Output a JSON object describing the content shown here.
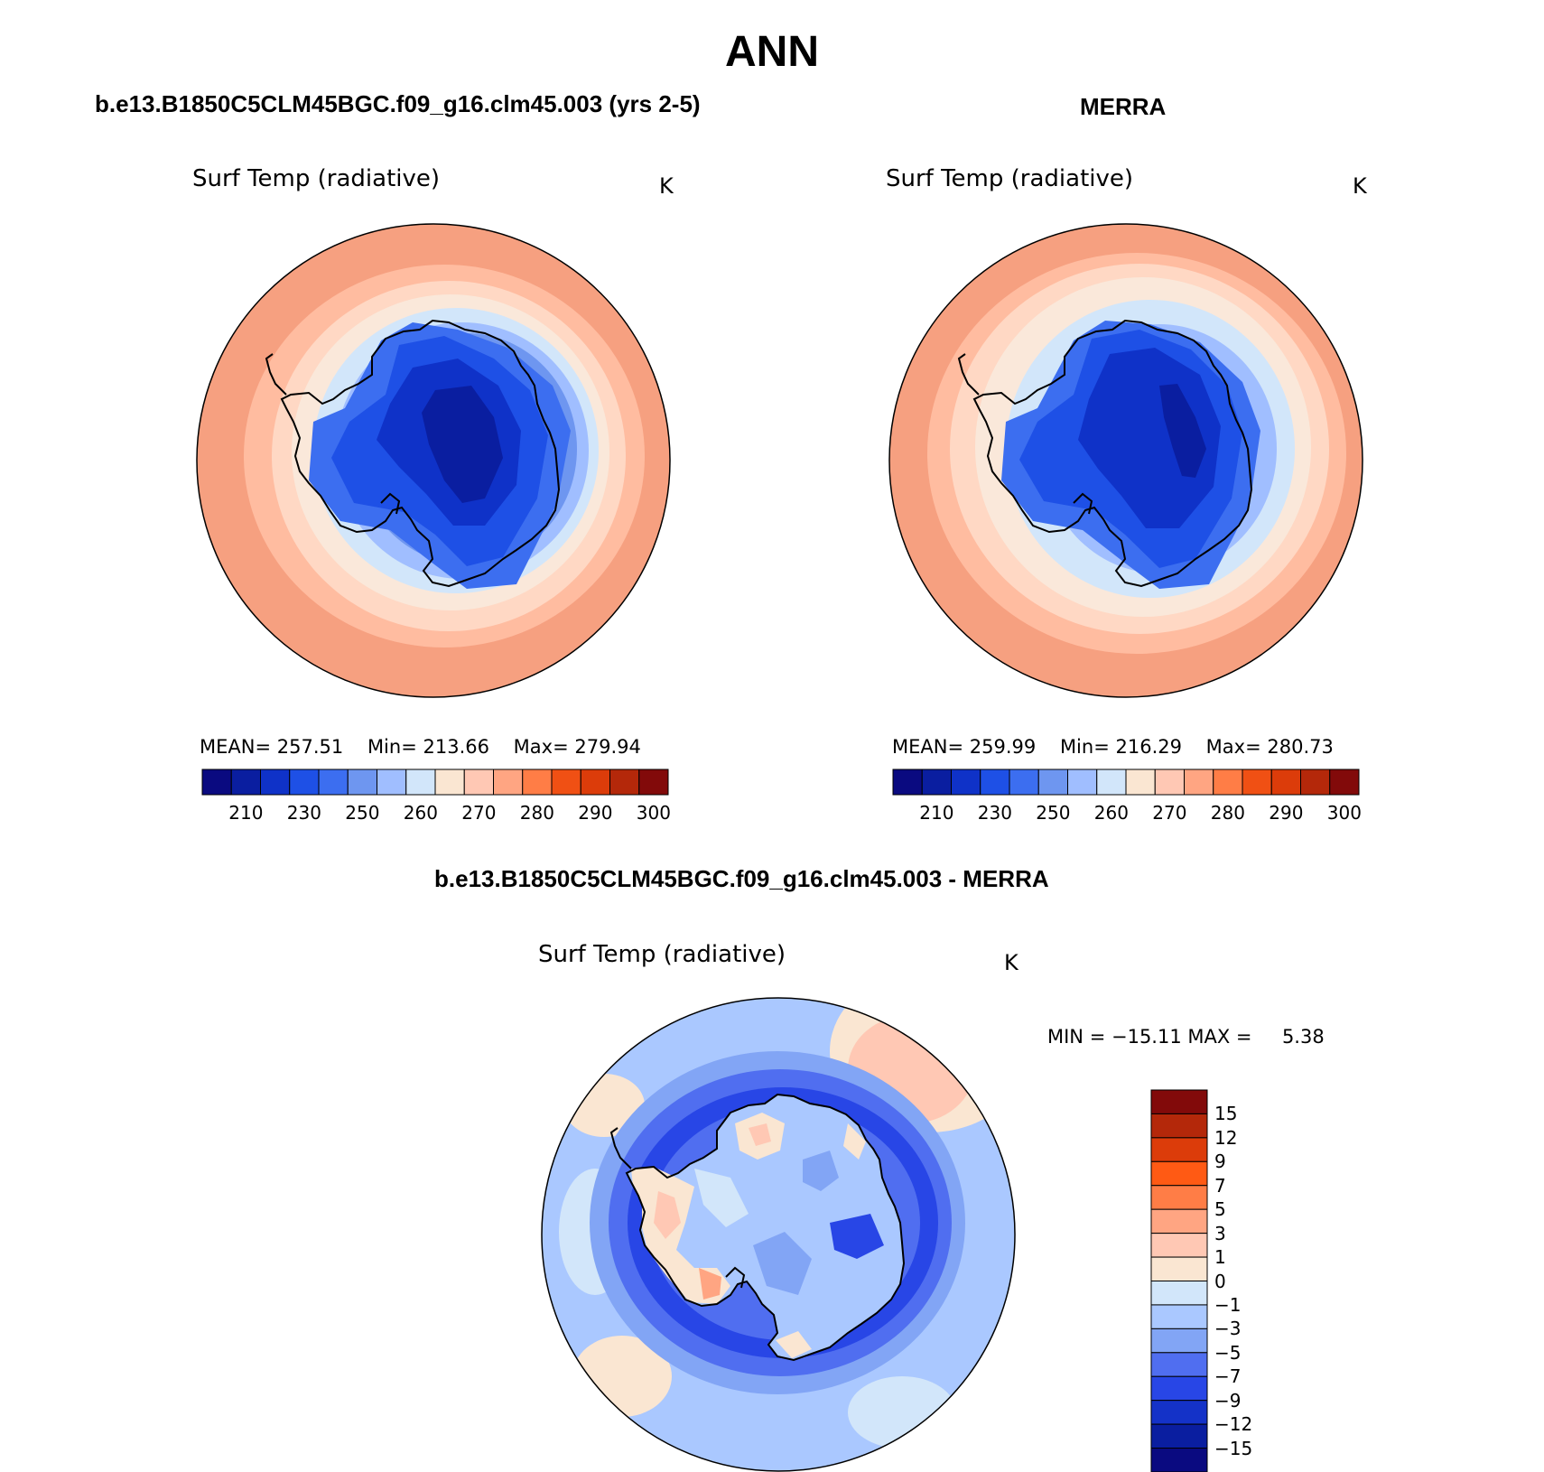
{
  "header": {
    "title": "ANN"
  },
  "panels": {
    "model": {
      "title": "b.e13.B1850C5CLM45BGC.f09_g16.clm45.003 (yrs 2-5)",
      "variable": "Surf Temp (radiative)",
      "units": "K",
      "mean_label": "MEAN=",
      "mean": "257.51",
      "min_label": "Min=",
      "min": "213.66",
      "max_label": "Max=",
      "max": "279.94"
    },
    "obs": {
      "title": "MERRA",
      "variable": "Surf Temp (radiative)",
      "units": "K",
      "mean_label": "MEAN=",
      "mean": "259.99",
      "min_label": "Min=",
      "min": "216.29",
      "max_label": "Max=",
      "max": "280.73"
    },
    "diff": {
      "title": "b.e13.B1850C5CLM45BGC.f09_g16.clm45.003 - MERRA",
      "variable": "Surf Temp (radiative)",
      "units": "K",
      "min_label": "MIN =",
      "min": "−15.11",
      "max_label": "MAX =",
      "max": "5.38"
    }
  },
  "abs_colorbar": {
    "colors": [
      "#0a0a80",
      "#0a1ea0",
      "#0f32c8",
      "#1e50e6",
      "#3c6ef0",
      "#6e96f0",
      "#a0beff",
      "#d2e6fa",
      "#fae6d2",
      "#ffc8b4",
      "#ffa582",
      "#ff7d46",
      "#f05014",
      "#dc3c0a",
      "#b4280a",
      "#820a0a"
    ],
    "labels": [
      "210",
      "230",
      "250",
      "260",
      "270",
      "280",
      "290",
      "300"
    ]
  },
  "diff_colorbar": {
    "colors": [
      "#820a0a",
      "#b4280a",
      "#dc3c0a",
      "#ff5a14",
      "#ff7d46",
      "#ffa582",
      "#ffc8b4",
      "#fae6d2",
      "#d2e6fa",
      "#aac8ff",
      "#82a5f5",
      "#506ef0",
      "#2846e6",
      "#1432c8",
      "#0a1ea0",
      "#0a0a80"
    ],
    "labels": [
      "15",
      "12",
      "9",
      "7",
      "5",
      "3",
      "1",
      "0",
      "−1",
      "−3",
      "−5",
      "−7",
      "−9",
      "−12",
      "−15"
    ]
  }
}
